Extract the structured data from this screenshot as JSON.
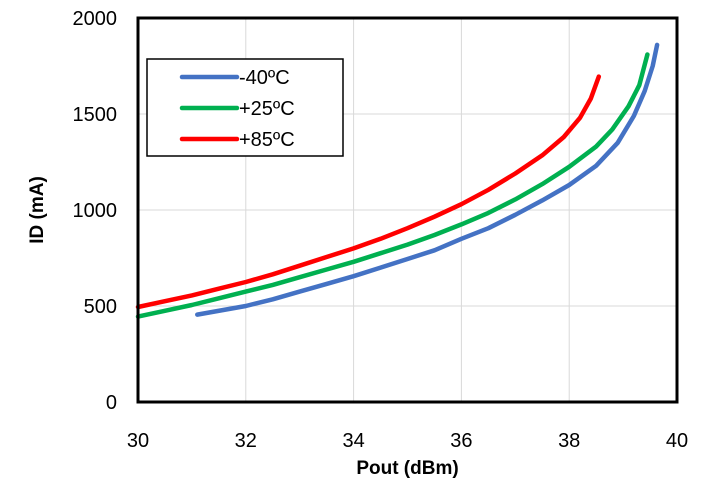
{
  "chart_data": {
    "type": "line",
    "title": "",
    "xlabel": "Pout (dBm)",
    "ylabel": "ID (mA)",
    "xlim": [
      30,
      40
    ],
    "ylim": [
      0,
      2000
    ],
    "xticks": [
      30,
      32,
      34,
      36,
      38,
      40
    ],
    "yticks": [
      0,
      500,
      1000,
      1500,
      2000
    ],
    "grid": true,
    "legend_position": "top-left",
    "series": [
      {
        "name": "-40ºC",
        "color": "#4472C4",
        "points": [
          [
            31.1,
            455
          ],
          [
            32.0,
            500
          ],
          [
            32.5,
            535
          ],
          [
            33.0,
            575
          ],
          [
            33.5,
            615
          ],
          [
            34.0,
            655
          ],
          [
            34.5,
            700
          ],
          [
            35.0,
            745
          ],
          [
            35.5,
            790
          ],
          [
            36.0,
            850
          ],
          [
            36.5,
            905
          ],
          [
            37.0,
            975
          ],
          [
            37.5,
            1050
          ],
          [
            38.0,
            1130
          ],
          [
            38.5,
            1230
          ],
          [
            38.9,
            1350
          ],
          [
            39.2,
            1490
          ],
          [
            39.4,
            1620
          ],
          [
            39.55,
            1750
          ],
          [
            39.63,
            1860
          ]
        ]
      },
      {
        "name": "+25ºC",
        "color": "#00B050",
        "points": [
          [
            30.0,
            445
          ],
          [
            30.5,
            475
          ],
          [
            31.0,
            505
          ],
          [
            31.5,
            540
          ],
          [
            32.0,
            575
          ],
          [
            32.5,
            610
          ],
          [
            33.0,
            650
          ],
          [
            33.5,
            690
          ],
          [
            34.0,
            730
          ],
          [
            34.5,
            775
          ],
          [
            35.0,
            820
          ],
          [
            35.5,
            870
          ],
          [
            36.0,
            925
          ],
          [
            36.5,
            985
          ],
          [
            37.0,
            1055
          ],
          [
            37.5,
            1135
          ],
          [
            38.0,
            1225
          ],
          [
            38.5,
            1330
          ],
          [
            38.8,
            1420
          ],
          [
            39.1,
            1540
          ],
          [
            39.3,
            1650
          ],
          [
            39.45,
            1810
          ]
        ]
      },
      {
        "name": "+85ºC",
        "color": "#FF0000",
        "points": [
          [
            30.0,
            495
          ],
          [
            30.5,
            525
          ],
          [
            31.0,
            555
          ],
          [
            31.5,
            590
          ],
          [
            32.0,
            625
          ],
          [
            32.5,
            665
          ],
          [
            33.0,
            710
          ],
          [
            33.5,
            755
          ],
          [
            34.0,
            800
          ],
          [
            34.5,
            850
          ],
          [
            35.0,
            905
          ],
          [
            35.5,
            965
          ],
          [
            36.0,
            1030
          ],
          [
            36.5,
            1105
          ],
          [
            37.0,
            1190
          ],
          [
            37.5,
            1285
          ],
          [
            37.9,
            1380
          ],
          [
            38.2,
            1480
          ],
          [
            38.4,
            1580
          ],
          [
            38.55,
            1695
          ]
        ]
      }
    ]
  }
}
